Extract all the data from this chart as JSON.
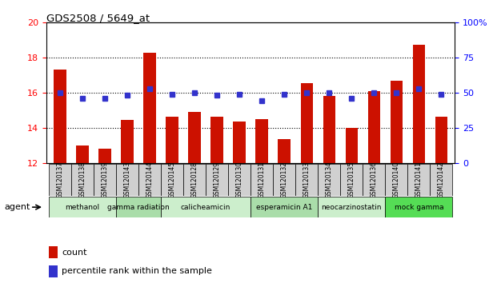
{
  "title": "GDS2508 / 5649_at",
  "samples": [
    "GSM120137",
    "GSM120138",
    "GSM120139",
    "GSM120143",
    "GSM120144",
    "GSM120145",
    "GSM120128",
    "GSM120129",
    "GSM120130",
    "GSM120131",
    "GSM120132",
    "GSM120133",
    "GSM120134",
    "GSM120135",
    "GSM120136",
    "GSM120140",
    "GSM120141",
    "GSM120142"
  ],
  "bar_values": [
    17.3,
    13.0,
    12.8,
    14.45,
    18.3,
    14.65,
    14.9,
    14.65,
    14.35,
    14.5,
    13.35,
    16.55,
    15.8,
    14.0,
    16.1,
    16.7,
    18.75,
    14.65
  ],
  "dot_values_pct": [
    50,
    46,
    46,
    48,
    53,
    49,
    50,
    48,
    49,
    44,
    49,
    50,
    50,
    46,
    50,
    50,
    53,
    49
  ],
  "ylim_left": [
    12,
    20
  ],
  "ylim_right": [
    0,
    100
  ],
  "yticks_left": [
    12,
    14,
    16,
    18,
    20
  ],
  "yticks_right": [
    0,
    25,
    50,
    75,
    100
  ],
  "bar_color": "#cc1100",
  "dot_color": "#3333cc",
  "groups": [
    {
      "label": "methanol",
      "start": 0,
      "end": 3,
      "color": "#cceecc"
    },
    {
      "label": "gamma radiation",
      "start": 3,
      "end": 5,
      "color": "#aaddaa"
    },
    {
      "label": "calicheamicin",
      "start": 5,
      "end": 9,
      "color": "#cceecc"
    },
    {
      "label": "esperamicin A1",
      "start": 9,
      "end": 12,
      "color": "#aaddaa"
    },
    {
      "label": "neocarzinostatin",
      "start": 12,
      "end": 15,
      "color": "#cceecc"
    },
    {
      "label": "mock gamma",
      "start": 15,
      "end": 18,
      "color": "#55dd55"
    }
  ],
  "agent_label": "agent",
  "legend_count_label": "count",
  "legend_pct_label": "percentile rank within the sample"
}
